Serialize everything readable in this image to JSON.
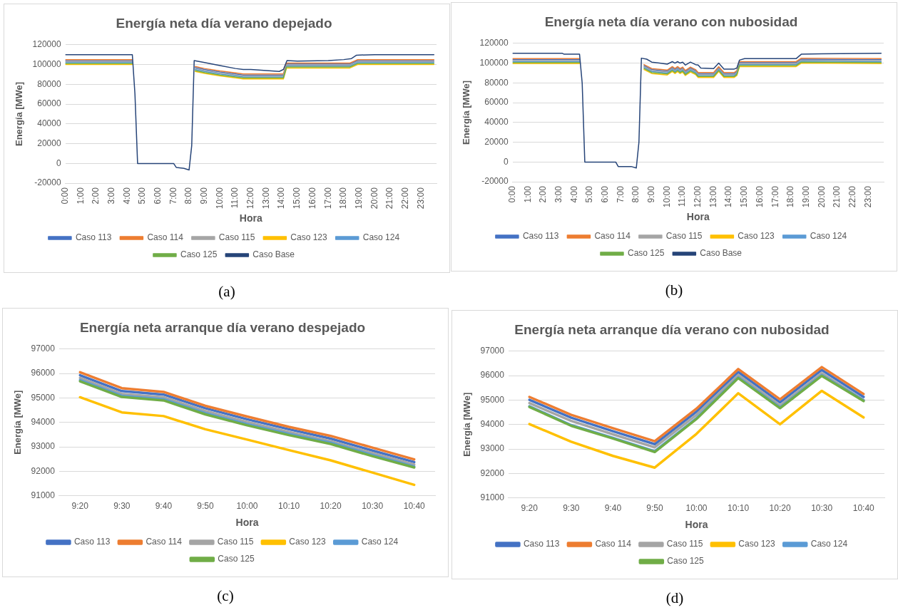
{
  "chart_data": [
    {
      "type": "line",
      "title": "Energía neta día verano depejado",
      "xlabel": "Hora",
      "ylabel": "Energía [MWe]",
      "annotations": [
        "(a)"
      ],
      "grid": "y",
      "legend": "bottom",
      "marker": "none",
      "line_style": "solid",
      "xlim": [
        0,
        24
      ],
      "xticks": [
        {
          "value": 0,
          "label": "0:00"
        },
        {
          "value": 1,
          "label": "1:00"
        },
        {
          "value": 2,
          "label": "2:00"
        },
        {
          "value": 3,
          "label": "3:00"
        },
        {
          "value": 4,
          "label": "4:00"
        },
        {
          "value": 5,
          "label": "5:00"
        },
        {
          "value": 6,
          "label": "6:00"
        },
        {
          "value": 7,
          "label": "7:00"
        },
        {
          "value": 8,
          "label": "8:00"
        },
        {
          "value": 9,
          "label": "9:00"
        },
        {
          "value": 10,
          "label": "10:00"
        },
        {
          "value": 11,
          "label": "11:00"
        },
        {
          "value": 12,
          "label": "12:00"
        },
        {
          "value": 13,
          "label": "13:00"
        },
        {
          "value": 14,
          "label": "14:00"
        },
        {
          "value": 15,
          "label": "15:00"
        },
        {
          "value": 16,
          "label": "16:00"
        },
        {
          "value": 17,
          "label": "17:00"
        },
        {
          "value": 18,
          "label": "18:00"
        },
        {
          "value": 19,
          "label": "19:00"
        },
        {
          "value": 20,
          "label": "20:00"
        },
        {
          "value": 21,
          "label": "21:00"
        },
        {
          "value": 22,
          "label": "22:00"
        },
        {
          "value": 23,
          "label": "23:00"
        }
      ],
      "ylim": [
        -20000,
        120000
      ],
      "yticks": [
        -20000,
        0,
        20000,
        40000,
        60000,
        80000,
        100000,
        120000
      ],
      "x": [
        0,
        4.33,
        4.5,
        4.67,
        7.0,
        7.17,
        7.67,
        8.0,
        8.17,
        8.4,
        9,
        10,
        11,
        11.5,
        12,
        13,
        14.1,
        14.3,
        15,
        16,
        17,
        18,
        18.4,
        18.9,
        20,
        22,
        23.83
      ],
      "series": [
        {
          "name": "Caso 113",
          "color": "#4472c4",
          "values": [
            104000,
            104000,
            null,
            null,
            null,
            null,
            null,
            null,
            null,
            97000,
            95000,
            92500,
            90500,
            89500,
            89500,
            89500,
            89500,
            100500,
            100500,
            100500,
            100500,
            100500,
            100500,
            104000,
            104000,
            104000,
            104000
          ]
        },
        {
          "name": "Caso 114",
          "color": "#ed7d31",
          "values": [
            105000,
            105000,
            null,
            null,
            null,
            null,
            null,
            null,
            null,
            98000,
            96000,
            93500,
            91500,
            90500,
            90500,
            90500,
            90500,
            101500,
            101500,
            101500,
            101500,
            101500,
            101500,
            105000,
            105000,
            105000,
            105000
          ]
        },
        {
          "name": "Caso 115",
          "color": "#a5a5a5",
          "values": [
            103000,
            103000,
            null,
            null,
            null,
            null,
            null,
            null,
            null,
            96000,
            94000,
            91500,
            89500,
            88500,
            88500,
            88500,
            88500,
            99500,
            99500,
            99500,
            99500,
            99500,
            99500,
            103000,
            103000,
            103000,
            103000
          ]
        },
        {
          "name": "Caso 123",
          "color": "#ffc000",
          "values": [
            100000,
            100000,
            null,
            null,
            null,
            null,
            null,
            null,
            null,
            93000,
            91000,
            88500,
            86500,
            85500,
            85500,
            85500,
            85500,
            96500,
            96500,
            96500,
            96500,
            96500,
            96500,
            100000,
            100000,
            100000,
            100000
          ]
        },
        {
          "name": "Caso 124",
          "color": "#5b9bd5",
          "values": [
            102000,
            102000,
            null,
            null,
            null,
            null,
            null,
            null,
            null,
            95000,
            93000,
            90500,
            88500,
            87500,
            87500,
            87500,
            87500,
            98500,
            98500,
            98500,
            98500,
            98500,
            98500,
            102000,
            102000,
            102000,
            102000
          ]
        },
        {
          "name": "Caso 125",
          "color": "#70ad47",
          "values": [
            101000,
            101000,
            null,
            null,
            null,
            null,
            null,
            null,
            null,
            94000,
            92000,
            89500,
            87500,
            86500,
            86500,
            86500,
            86500,
            97500,
            97500,
            97500,
            97500,
            97500,
            97500,
            101000,
            101000,
            101000,
            101000
          ]
        },
        {
          "name": "Caso Base",
          "color": "#264478",
          "x": [
            0,
            4.33,
            4.5,
            4.67,
            7.0,
            7.17,
            7.67,
            8.0,
            8.17,
            8.33,
            9,
            10,
            11,
            11.5,
            12,
            13,
            13.83,
            14.1,
            14.33,
            15,
            17,
            18,
            18.5,
            18.83,
            20,
            22,
            23.83
          ],
          "values": [
            110000,
            110000,
            70000,
            0,
            0,
            -4000,
            -5000,
            -6500,
            18000,
            104000,
            102000,
            99000,
            96000,
            95000,
            95000,
            94000,
            93000,
            95000,
            104000,
            103500,
            104000,
            105000,
            106000,
            109500,
            110000,
            110000,
            110000
          ]
        }
      ]
    },
    {
      "type": "line",
      "title": "Energía neta día verano con nubosidad",
      "xlabel": "Hora",
      "ylabel": "Energía [MWe]",
      "annotations": [
        "(b)"
      ],
      "grid": "y",
      "legend": "bottom",
      "marker": "none",
      "line_style": "solid",
      "xlim": [
        0,
        24
      ],
      "xticks": [
        {
          "value": 0,
          "label": "0:00"
        },
        {
          "value": 1,
          "label": "1:00"
        },
        {
          "value": 2,
          "label": "2:00"
        },
        {
          "value": 3,
          "label": "3:00"
        },
        {
          "value": 4,
          "label": "4:00"
        },
        {
          "value": 5,
          "label": "5:00"
        },
        {
          "value": 6,
          "label": "6:00"
        },
        {
          "value": 7,
          "label": "7:00"
        },
        {
          "value": 8,
          "label": "8:00"
        },
        {
          "value": 9,
          "label": "9:00"
        },
        {
          "value": 10,
          "label": "10:00"
        },
        {
          "value": 11,
          "label": "11:00"
        },
        {
          "value": 12,
          "label": "12:00"
        },
        {
          "value": 13,
          "label": "13:00"
        },
        {
          "value": 14,
          "label": "14:00"
        },
        {
          "value": 15,
          "label": "15:00"
        },
        {
          "value": 16,
          "label": "16:00"
        },
        {
          "value": 17,
          "label": "17:00"
        },
        {
          "value": 18,
          "label": "18:00"
        },
        {
          "value": 19,
          "label": "19:00"
        },
        {
          "value": 20,
          "label": "20:00"
        },
        {
          "value": 21,
          "label": "21:00"
        },
        {
          "value": 22,
          "label": "22:00"
        },
        {
          "value": 23,
          "label": "23:00"
        }
      ],
      "ylim": [
        -20000,
        120000
      ],
      "yticks": [
        -20000,
        0,
        20000,
        40000,
        60000,
        80000,
        100000,
        120000
      ],
      "x": [
        0,
        4.33,
        4.5,
        4.67,
        6.67,
        6.83,
        7.67,
        8.0,
        8.17,
        8.5,
        9,
        10,
        10.33,
        10.5,
        10.67,
        10.83,
        11,
        11.17,
        11.5,
        11.83,
        12,
        13,
        13.33,
        13.67,
        14.33,
        14.5,
        14.67,
        18.33,
        18.67,
        23.83
      ],
      "series": [
        {
          "name": "Caso 113",
          "color": "#4472c4",
          "values": [
            103500,
            103500,
            null,
            null,
            null,
            null,
            null,
            null,
            null,
            97500,
            93500,
            92000,
            95500,
            93500,
            95500,
            93500,
            95000,
            91500,
            95000,
            92500,
            89500,
            89500,
            95500,
            89500,
            89500,
            91500,
            100500,
            100500,
            104000,
            103500
          ]
        },
        {
          "name": "Caso 114",
          "color": "#ed7d31",
          "values": [
            104500,
            104500,
            null,
            null,
            null,
            null,
            null,
            null,
            null,
            98500,
            94500,
            93000,
            96500,
            94500,
            96500,
            94500,
            96000,
            92500,
            96000,
            93500,
            90500,
            90500,
            96500,
            90500,
            90500,
            92500,
            101500,
            101500,
            105000,
            104500
          ]
        },
        {
          "name": "Caso 115",
          "color": "#a5a5a5",
          "values": [
            102500,
            102500,
            null,
            null,
            null,
            null,
            null,
            null,
            null,
            96500,
            92500,
            91000,
            94500,
            92500,
            94500,
            92500,
            94000,
            90500,
            94000,
            91500,
            88500,
            88500,
            94500,
            88500,
            88500,
            90500,
            99500,
            99500,
            103000,
            102500
          ]
        },
        {
          "name": "Caso 123",
          "color": "#ffc000",
          "values": [
            99500,
            99500,
            null,
            null,
            null,
            null,
            null,
            null,
            null,
            93500,
            89500,
            88000,
            91500,
            89500,
            91500,
            89500,
            91000,
            87500,
            91000,
            88500,
            85500,
            85500,
            91500,
            85500,
            85500,
            87500,
            96500,
            96500,
            100000,
            99500
          ]
        },
        {
          "name": "Caso 124",
          "color": "#5b9bd5",
          "values": [
            101500,
            101500,
            null,
            null,
            null,
            null,
            null,
            null,
            null,
            95500,
            91500,
            90000,
            93500,
            91500,
            93500,
            91500,
            93000,
            89500,
            93000,
            90500,
            87500,
            87500,
            93500,
            87500,
            87500,
            89500,
            98500,
            98500,
            102000,
            101500
          ]
        },
        {
          "name": "Caso 125",
          "color": "#70ad47",
          "values": [
            100500,
            100500,
            null,
            null,
            null,
            null,
            null,
            null,
            null,
            94500,
            90500,
            89000,
            92500,
            90500,
            92500,
            90500,
            92000,
            88500,
            92000,
            89500,
            86500,
            86500,
            92500,
            86500,
            86500,
            88500,
            97500,
            97500,
            101000,
            100500
          ]
        },
        {
          "name": "Caso Base",
          "color": "#264478",
          "x": [
            0,
            3.2,
            3.33,
            4.33,
            4.5,
            4.67,
            6.67,
            6.83,
            7.67,
            8.0,
            8.17,
            8.33,
            8.67,
            9,
            9.5,
            10,
            10.33,
            10.5,
            10.67,
            10.83,
            11,
            11.17,
            11.5,
            11.83,
            12,
            12.17,
            13,
            13.33,
            13.67,
            14.33,
            14.5,
            14.67,
            15,
            17,
            18.33,
            18.67,
            20,
            23.83
          ],
          "values": [
            110000,
            110000,
            109000,
            109000,
            80000,
            0,
            0,
            -4500,
            -4500,
            -6000,
            20000,
            105000,
            104000,
            101000,
            100000,
            99000,
            101500,
            100000,
            101500,
            100000,
            101000,
            98000,
            101000,
            98500,
            98000,
            95000,
            94500,
            100000,
            94000,
            94000,
            95000,
            103000,
            104500,
            104500,
            104500,
            109000,
            109500,
            110000
          ]
        }
      ]
    },
    {
      "type": "line",
      "title": "Energía neta arranque día verano despejado",
      "xlabel": "Hora",
      "ylabel": "Energía [MWe]",
      "annotations": [
        "(c)"
      ],
      "grid": "y",
      "legend": "bottom",
      "marker": "none",
      "line_style": "solid",
      "categories": [
        "9:20",
        "9:30",
        "9:40",
        "9:50",
        "10:00",
        "10:10",
        "10:20",
        "10:30",
        "10:40"
      ],
      "ylim": [
        91000,
        97000
      ],
      "yticks": [
        91000,
        92000,
        93000,
        94000,
        95000,
        96000,
        97000
      ],
      "series": [
        {
          "name": "Caso 113",
          "color": "#4472c4",
          "values": [
            95930,
            95280,
            95140,
            94580,
            94130,
            93720,
            93340,
            92850,
            92380
          ]
        },
        {
          "name": "Caso 114",
          "color": "#ed7d31",
          "values": [
            96050,
            95400,
            95250,
            94680,
            94240,
            93820,
            93450,
            92970,
            92490
          ]
        },
        {
          "name": "Caso 115",
          "color": "#a5a5a5",
          "values": [
            95820,
            95170,
            95030,
            94470,
            94020,
            93610,
            93230,
            92750,
            92280
          ]
        },
        {
          "name": "Caso 123",
          "color": "#ffc000",
          "values": [
            95030,
            94410,
            94260,
            93720,
            93300,
            92870,
            92450,
            91950,
            91450
          ]
        },
        {
          "name": "Caso 124",
          "color": "#5b9bd5",
          "values": [
            95730,
            95090,
            94950,
            94380,
            93930,
            93530,
            93170,
            92670,
            92200
          ]
        },
        {
          "name": "Caso 125",
          "color": "#70ad47",
          "values": [
            95680,
            95040,
            94900,
            94330,
            93880,
            93480,
            93120,
            92620,
            92160
          ]
        }
      ]
    },
    {
      "type": "line",
      "title": "Energía neta arranque día verano con nubosidad",
      "xlabel": "Hora",
      "ylabel": "Energía [MWe]",
      "annotations": [
        "(d)"
      ],
      "grid": "y",
      "legend": "bottom",
      "marker": "none",
      "line_style": "solid",
      "categories": [
        "9:20",
        "9:30",
        "9:40",
        "9:50",
        "10:00",
        "10:10",
        "10:20",
        "10:30",
        "10:40"
      ],
      "ylim": [
        91000,
        97000
      ],
      "yticks": [
        91000,
        92000,
        93000,
        94000,
        95000,
        96000,
        97000
      ],
      "series": [
        {
          "name": "Caso 113",
          "color": "#4472c4",
          "values": [
            95010,
            94280,
            93730,
            93200,
            94530,
            96150,
            94910,
            96230,
            95130
          ]
        },
        {
          "name": "Caso 114",
          "color": "#ed7d31",
          "values": [
            95130,
            94400,
            93850,
            93320,
            94650,
            96270,
            95030,
            96350,
            95250
          ]
        },
        {
          "name": "Caso 115",
          "color": "#a5a5a5",
          "values": [
            94880,
            94150,
            93600,
            93070,
            94400,
            96020,
            94780,
            96100,
            95000
          ]
        },
        {
          "name": "Caso 123",
          "color": "#ffc000",
          "values": [
            94020,
            93300,
            92720,
            92240,
            93620,
            95280,
            94010,
            95380,
            94290
          ]
        },
        {
          "name": "Caso 124",
          "color": "#5b9bd5",
          "values": [
            94750,
            93980,
            93460,
            92910,
            94260,
            95930,
            94700,
            96020,
            94990
          ]
        },
        {
          "name": "Caso 125",
          "color": "#70ad47",
          "values": [
            94720,
            93950,
            93430,
            92880,
            94230,
            95900,
            94670,
            95990,
            94960
          ]
        }
      ]
    }
  ]
}
